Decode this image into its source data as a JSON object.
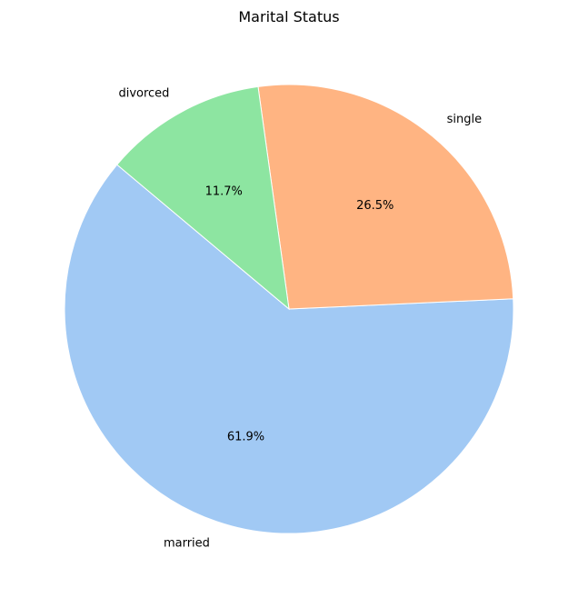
{
  "chart_data": {
    "type": "pie",
    "title": "Marital Status",
    "slices": [
      {
        "label": "married",
        "value": 61.9,
        "pct_label": "61.9%",
        "color": "#a1c9f4"
      },
      {
        "label": "single",
        "value": 26.5,
        "pct_label": "26.5%",
        "color": "#ffb482"
      },
      {
        "label": "divorced",
        "value": 11.7,
        "pct_label": "11.7%",
        "color": "#8de5a1"
      }
    ],
    "start_angle_deg": 140,
    "direction": "counterclockwise"
  }
}
